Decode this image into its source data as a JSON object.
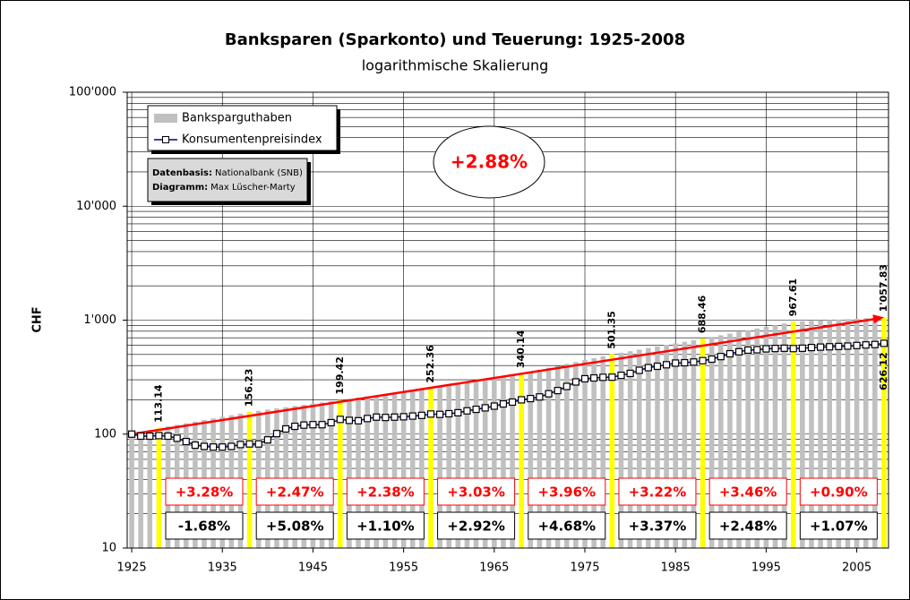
{
  "chart_data": {
    "type": "bar-line",
    "title": "Banksparen (Sparkonto) und Teuerung: 1925-2008",
    "subtitle": "logarithmische Skalierung",
    "y_label": "CHF",
    "log_y": true,
    "grid": true,
    "ylim": [
      10,
      100000
    ],
    "yticks": [
      {
        "value": 100000,
        "label": "100'000"
      },
      {
        "value": 10000,
        "label": "10'000"
      },
      {
        "value": 1000,
        "label": "1'000"
      },
      100,
      10
    ],
    "xlim": [
      1924.5,
      2008.5
    ],
    "xticks": [
      1925,
      1935,
      1945,
      1955,
      1965,
      1975,
      1985,
      1995,
      2005
    ],
    "x": [
      1925,
      1926,
      1927,
      1928,
      1929,
      1930,
      1931,
      1932,
      1933,
      1934,
      1935,
      1936,
      1937,
      1938,
      1939,
      1940,
      1941,
      1942,
      1943,
      1944,
      1945,
      1946,
      1947,
      1948,
      1949,
      1950,
      1951,
      1952,
      1953,
      1954,
      1955,
      1956,
      1957,
      1958,
      1959,
      1960,
      1961,
      1962,
      1963,
      1964,
      1965,
      1966,
      1967,
      1968,
      1969,
      1970,
      1971,
      1972,
      1973,
      1974,
      1975,
      1976,
      1977,
      1978,
      1979,
      1980,
      1981,
      1982,
      1983,
      1984,
      1985,
      1986,
      1987,
      1988,
      1989,
      1990,
      1991,
      1992,
      1993,
      1994,
      1995,
      1996,
      1997,
      1998,
      1999,
      2000,
      2001,
      2002,
      2003,
      2004,
      2005,
      2006,
      2007,
      2008
    ],
    "highlight_color": "#ffff00",
    "series": [
      {
        "name": "Banksparguthaben",
        "color": "#c0c0c0",
        "values": [
          100,
          104.2,
          108.58,
          113.14,
          116.85,
          120.68,
          124.64,
          128.73,
          132.95,
          137.31,
          141.82,
          146.47,
          151.27,
          156.23,
          160.09,
          164.04,
          168.09,
          172.24,
          176.5,
          180.86,
          185.33,
          189.91,
          194.6,
          199.42,
          204.17,
          209.03,
          214,
          219.09,
          224.3,
          229.64,
          235.11,
          240.71,
          246.44,
          252.36,
          260.01,
          267.89,
          276,
          284.37,
          292.98,
          301.86,
          311.01,
          320.43,
          330.14,
          340.14,
          353.61,
          367.61,
          382.17,
          397.3,
          413.03,
          429.39,
          446.39,
          464.07,
          482.44,
          501.35,
          517.49,
          534.16,
          551.36,
          569.11,
          587.44,
          606.35,
          625.88,
          646.03,
          666.83,
          688.46,
          712.28,
          736.92,
          762.42,
          788.8,
          816.09,
          844.33,
          873.54,
          903.77,
          935.04,
          967.61,
          976.32,
          985.11,
          993.97,
          1002.92,
          1011.94,
          1021.05,
          1030.24,
          1039.51,
          1048.87,
          1057.83
        ],
        "value_labels": [
          null,
          null,
          null,
          "113.14",
          null,
          null,
          null,
          null,
          null,
          null,
          null,
          null,
          null,
          "156.23",
          null,
          null,
          null,
          null,
          null,
          null,
          null,
          null,
          null,
          "199.42",
          null,
          null,
          null,
          null,
          null,
          null,
          null,
          null,
          null,
          "252.36",
          null,
          null,
          null,
          null,
          null,
          null,
          null,
          null,
          null,
          "340.14",
          null,
          null,
          null,
          null,
          null,
          null,
          null,
          null,
          null,
          "501.35",
          null,
          null,
          null,
          null,
          null,
          null,
          null,
          null,
          null,
          "688.46",
          null,
          null,
          null,
          null,
          null,
          null,
          null,
          null,
          null,
          "967.61",
          null,
          null,
          null,
          null,
          null,
          null,
          null,
          null,
          null,
          "1'057.83"
        ]
      },
      {
        "name": "Konsumentenpreisindex",
        "color": "#000080",
        "values": [
          100,
          96,
          96,
          97,
          96,
          92,
          86,
          80,
          78,
          77,
          77,
          78,
          81,
          82,
          82,
          89,
          101,
          111,
          117,
          120,
          121,
          121,
          126,
          134.6,
          132,
          131,
          137,
          141,
          140,
          141,
          142,
          144,
          146,
          150,
          149,
          151,
          154,
          160,
          165,
          170,
          176,
          184,
          191,
          200,
          205,
          212,
          226,
          241,
          262,
          287,
          306,
          311,
          315,
          316,
          328,
          341,
          363,
          383,
          394,
          406,
          420,
          423,
          429,
          441,
          455,
          479,
          507,
          528,
          546,
          550,
          560,
          564,
          567,
          563,
          567,
          575,
          580,
          584,
          588,
          592,
          599,
          606,
          611,
          626.12
        ],
        "value_labels": [
          null,
          null,
          null,
          null,
          null,
          null,
          null,
          null,
          null,
          null,
          null,
          null,
          null,
          null,
          null,
          null,
          null,
          null,
          null,
          null,
          null,
          null,
          null,
          null,
          null,
          null,
          null,
          null,
          null,
          null,
          null,
          null,
          null,
          null,
          null,
          null,
          null,
          null,
          null,
          null,
          null,
          null,
          null,
          null,
          null,
          null,
          null,
          null,
          null,
          null,
          null,
          null,
          null,
          null,
          null,
          null,
          null,
          null,
          null,
          null,
          null,
          null,
          null,
          null,
          null,
          null,
          null,
          null,
          null,
          null,
          null,
          null,
          null,
          null,
          null,
          null,
          null,
          null,
          null,
          null,
          null,
          null,
          null,
          "626.12"
        ]
      }
    ],
    "trend_label": "+2.88%",
    "savings_growth": [
      "+3.28%",
      "+2.47%",
      "+2.38%",
      "+3.03%",
      "+3.96%",
      "+3.22%",
      "+3.46%",
      "+0.90%"
    ],
    "inflation": [
      "-1.68%",
      "+5.08%",
      "+1.10%",
      "+2.92%",
      "+4.68%",
      "+3.37%",
      "+2.48%",
      "+1.07%"
    ],
    "credits": [
      {
        "label": "Datenbasis:",
        "text": "Nationalbank (SNB)"
      },
      {
        "label": "Diagramm:",
        "text": "Max Lüscher-Marty"
      }
    ]
  }
}
